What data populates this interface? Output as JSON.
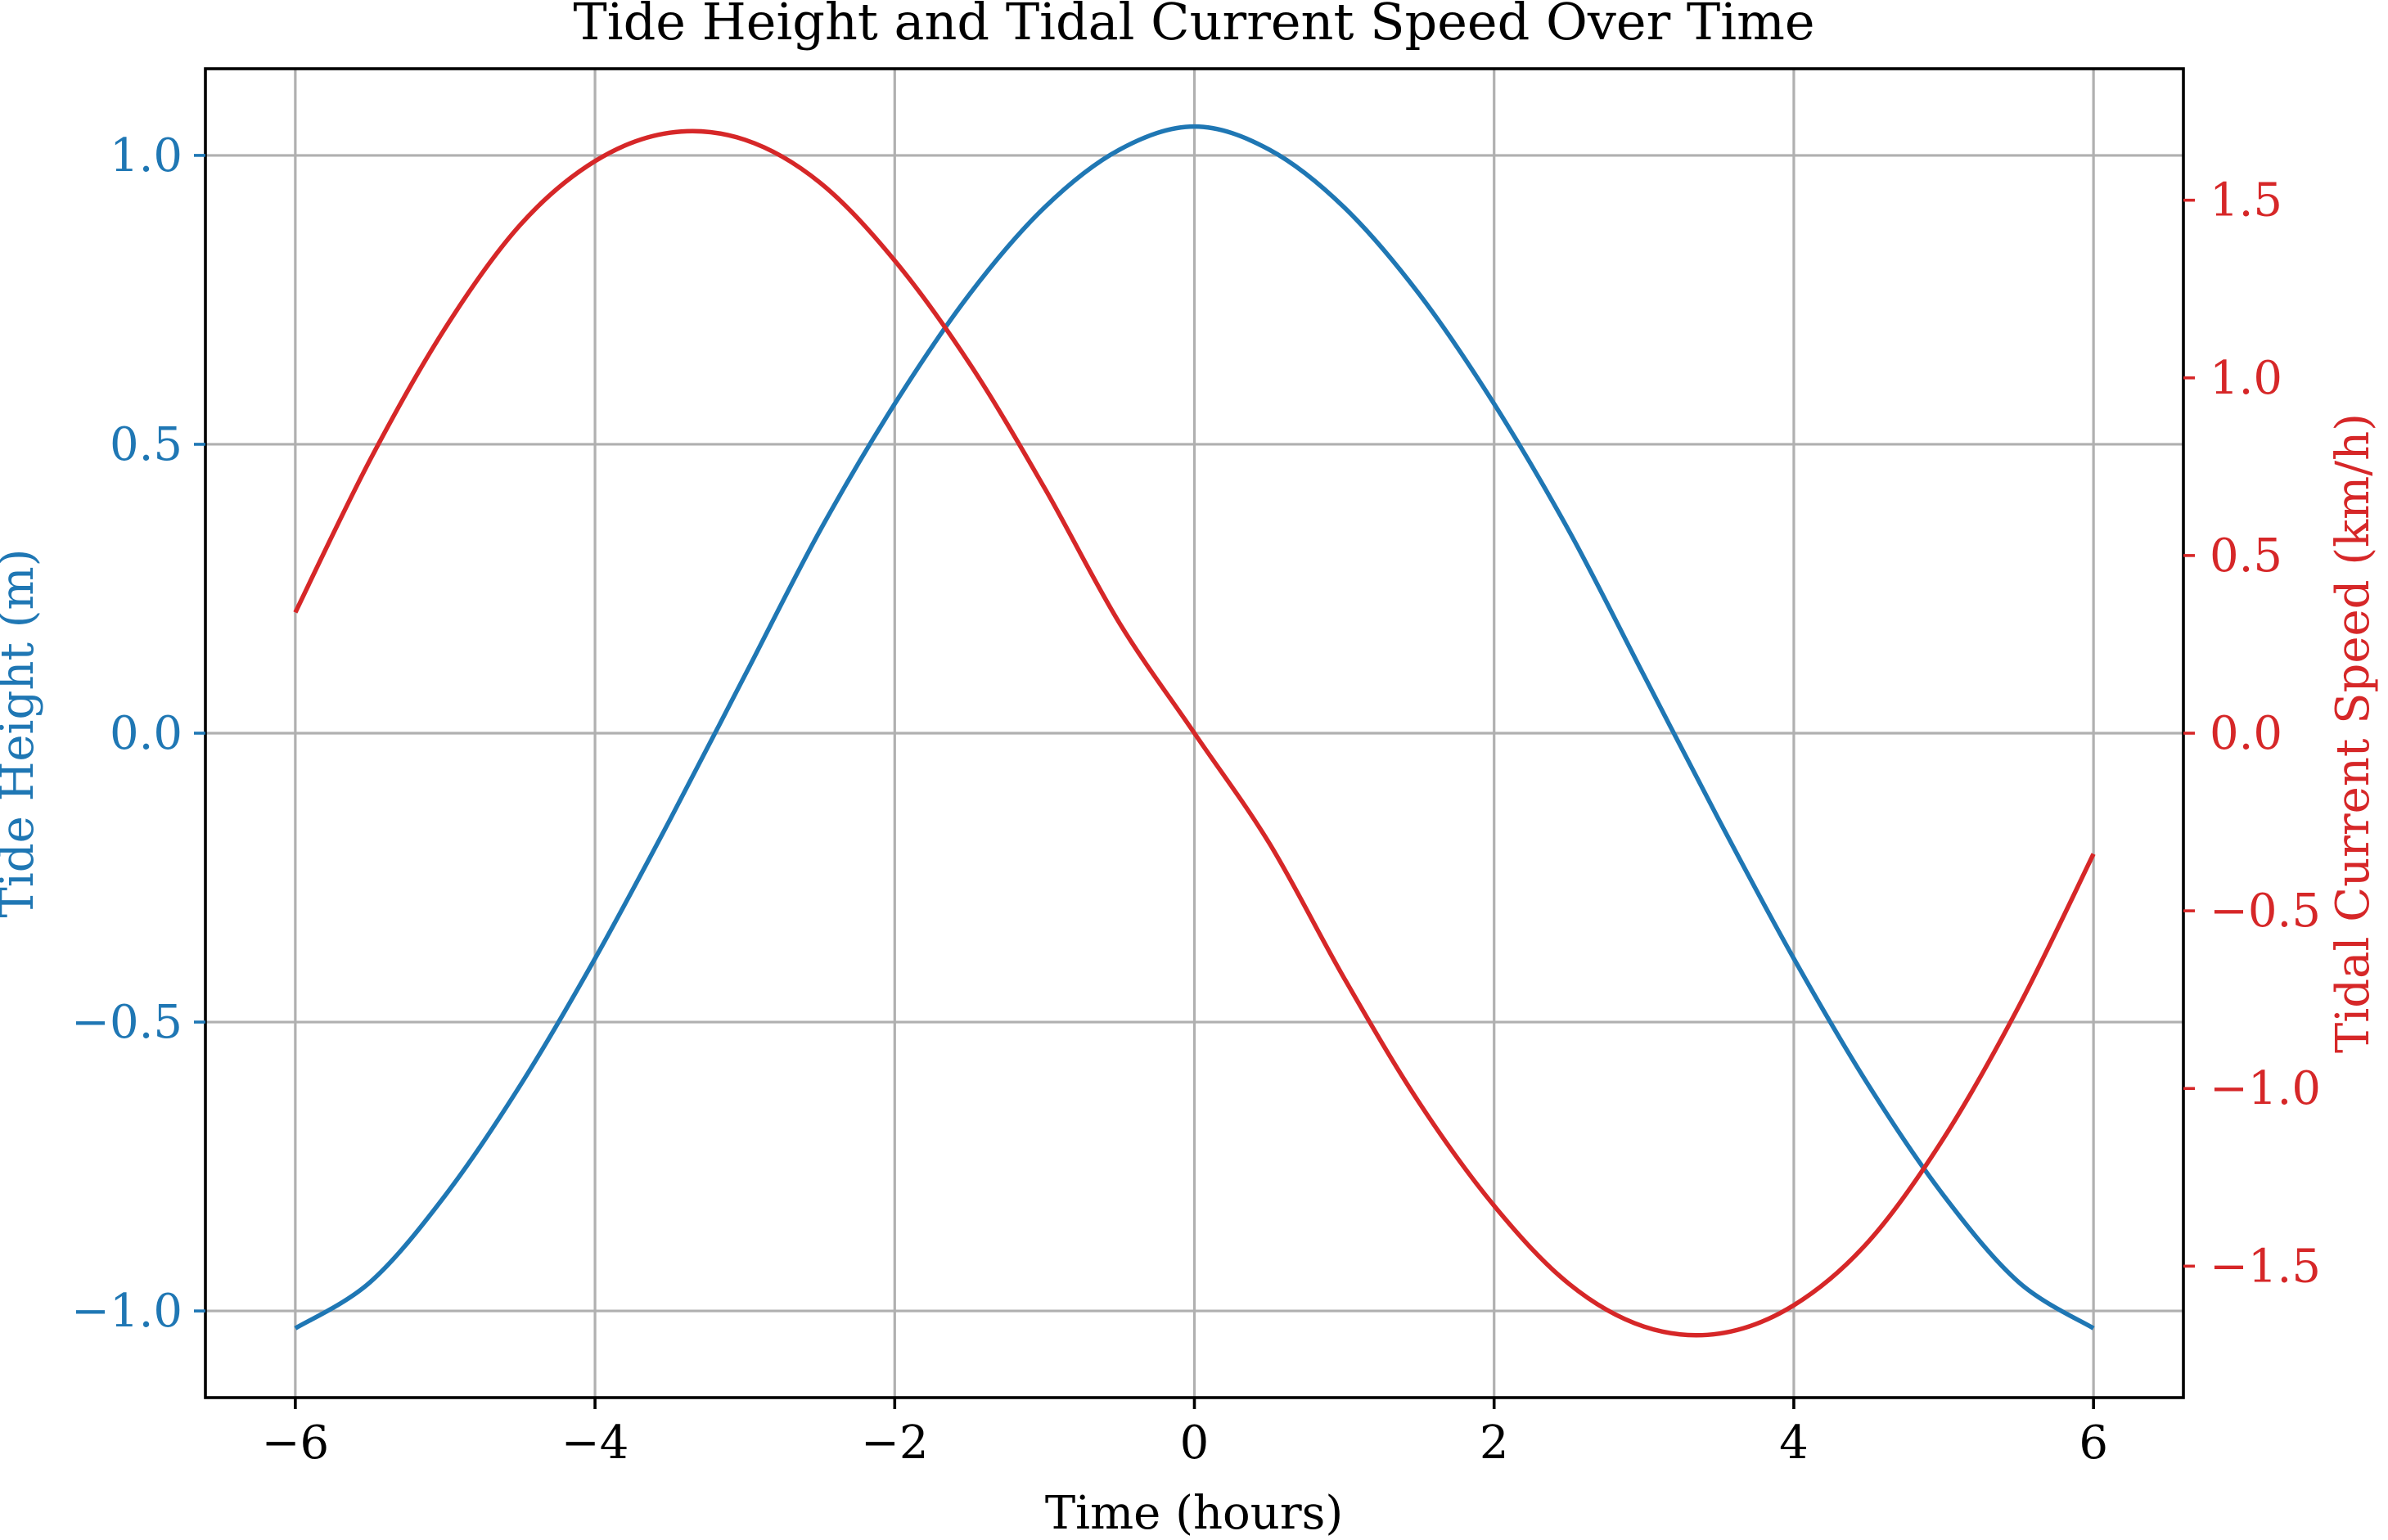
{
  "chart_data": {
    "type": "line",
    "title": "Tide Height and Tidal Current Speed Over Time",
    "xlabel": "Time (hours)",
    "ylabel_left": "Tide Height (m)",
    "ylabel_right": "Tidal Current Speed (km/h)",
    "grid": true,
    "legend": "none",
    "xlim": [
      -6.6,
      6.6
    ],
    "ylim_left": [
      -1.15,
      1.15
    ],
    "ylim_right": [
      -1.87,
      1.87
    ],
    "x_ticks": [
      -6,
      -4,
      -2,
      0,
      2,
      4,
      6
    ],
    "x_tick_labels": [
      "−6",
      "−4",
      "−2",
      "0",
      "2",
      "4",
      "6"
    ],
    "y_left_ticks": [
      -1.0,
      -0.5,
      0.0,
      0.5,
      1.0
    ],
    "y_left_tick_labels": [
      "−1.0",
      "−0.5",
      "0.0",
      "0.5",
      "1.0"
    ],
    "y_right_ticks": [
      -1.5,
      -1.0,
      -0.5,
      0.0,
      0.5,
      1.0,
      1.5
    ],
    "y_right_tick_labels": [
      "−1.5",
      "−1.0",
      "−0.5",
      "0.0",
      "0.5",
      "1.0",
      "1.5"
    ],
    "series": [
      {
        "axis": "left",
        "color": "#1f77b4",
        "x": [
          -6,
          -5.5,
          -5,
          -4.5,
          -4,
          -3.5,
          -3,
          -2.5,
          -2,
          -1.5,
          -1,
          -0.5,
          0,
          0.5,
          1,
          1.5,
          2,
          2.5,
          3,
          3.5,
          4,
          4.5,
          5,
          5.5,
          6
        ],
        "values": [
          -1.03,
          -0.95,
          -0.8,
          -0.61,
          -0.39,
          -0.15,
          0.1,
          0.35,
          0.57,
          0.76,
          0.91,
          1.01,
          1.05,
          1.01,
          0.91,
          0.76,
          0.57,
          0.35,
          0.1,
          -0.15,
          -0.39,
          -0.61,
          -0.8,
          -0.95,
          -1.03
        ]
      },
      {
        "axis": "right",
        "color": "#d62728",
        "x": [
          -6,
          -5.5,
          -5,
          -4.5,
          -4,
          -3.5,
          -3,
          -2.5,
          -2,
          -1.5,
          -1,
          -0.5,
          0,
          0.5,
          1,
          1.5,
          2,
          2.5,
          3,
          3.5,
          4,
          4.5,
          5,
          5.5,
          6
        ],
        "values": [
          0.34,
          0.77,
          1.14,
          1.43,
          1.61,
          1.69,
          1.67,
          1.55,
          1.33,
          1.04,
          0.69,
          0.31,
          0.0,
          -0.31,
          -0.69,
          -1.04,
          -1.33,
          -1.55,
          -1.67,
          -1.69,
          -1.61,
          -1.43,
          -1.14,
          -0.77,
          -0.34
        ]
      }
    ]
  }
}
